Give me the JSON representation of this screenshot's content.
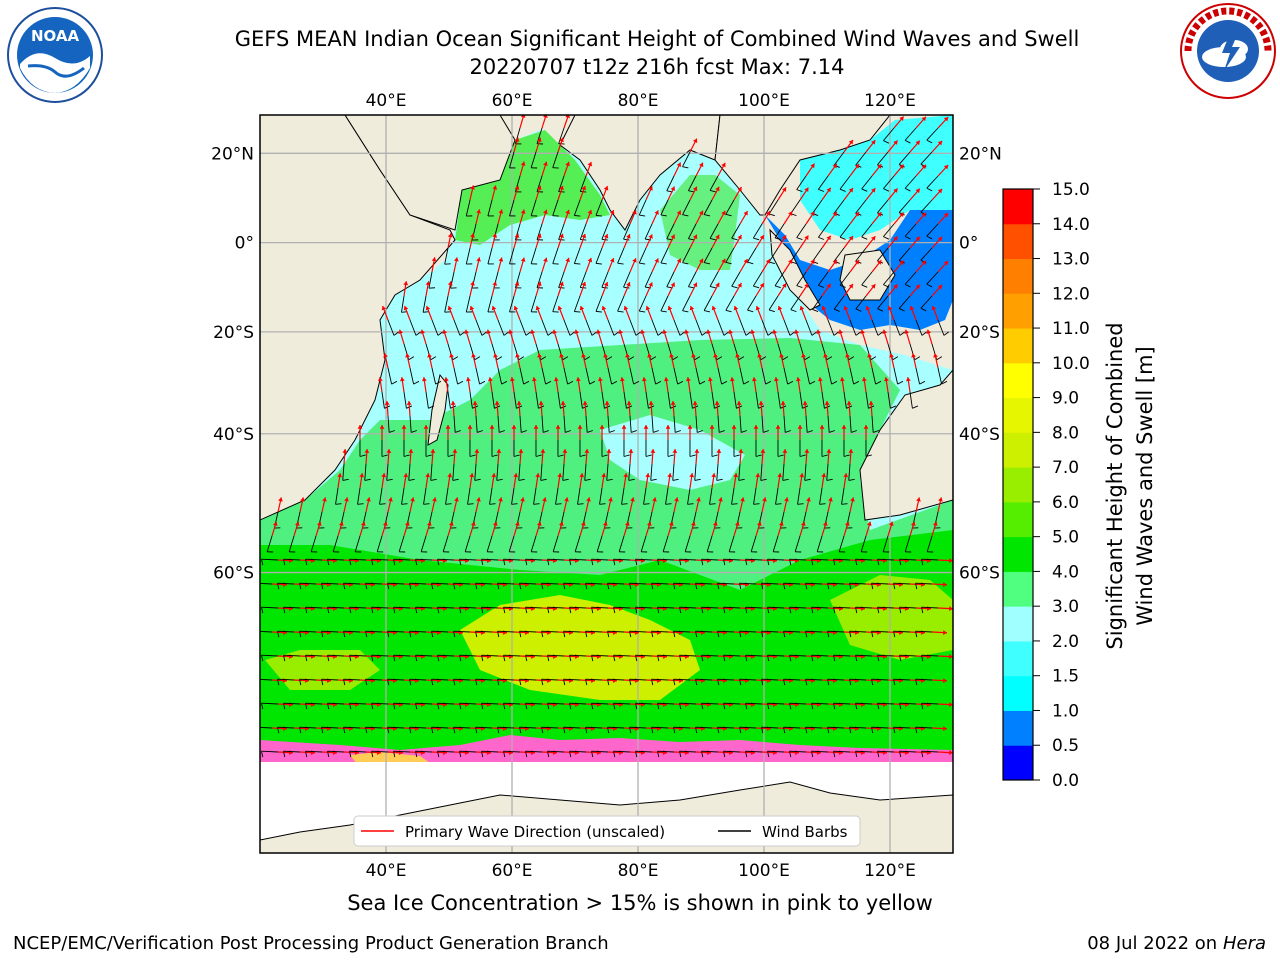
{
  "title": {
    "line1": "GEFS MEAN Indian Ocean Significant Height of Combined Wind Waves and Swell",
    "line2": "20220707 t12z 216h fcst   Max: 7.14"
  },
  "logos": {
    "left": {
      "icon": "noaa-logo-icon",
      "text": "NOAA"
    },
    "right": {
      "icon": "nws-logo-icon",
      "ring_text": "NATIONAL WEATHER SERVICE"
    }
  },
  "map": {
    "lon_ticks": [
      "40°E",
      "60°E",
      "80°E",
      "100°E",
      "120°E"
    ],
    "lon_values": [
      40,
      60,
      80,
      100,
      120
    ],
    "lat_ticks": [
      "20°N",
      "0°",
      "20°S",
      "40°S",
      "60°S"
    ],
    "lat_values": [
      20,
      0,
      -20,
      -40,
      -60
    ],
    "extent": {
      "lon": [
        20,
        130
      ],
      "lat": [
        -80,
        28
      ]
    },
    "colors": {
      "land": "#efecdc",
      "ice": "#ffffff",
      "grid": "#b0b0b0"
    }
  },
  "legend": {
    "wave_label": "Primary Wave Direction (unscaled)",
    "wave_color": "#ff0000",
    "wind_label": "Wind Barbs",
    "wind_color": "#000000"
  },
  "colorbar": {
    "label_line1": "Significant Height of Combined",
    "label_line2": "Wind Waves and Swell [m]",
    "levels": [
      "0.0",
      "0.5",
      "1.0",
      "1.5",
      "2.0",
      "3.0",
      "4.0",
      "5.0",
      "6.0",
      "7.0",
      "8.0",
      "9.0",
      "10.0",
      "11.0",
      "12.0",
      "13.0",
      "14.0",
      "15.0"
    ],
    "colors": [
      "#0000ff",
      "#0080ff",
      "#00ffff",
      "#40ffff",
      "#a0ffff",
      "#50ff80",
      "#00e600",
      "#55ee00",
      "#99ee00",
      "#ccf000",
      "#e6f500",
      "#ffff00",
      "#ffcc00",
      "#ffa000",
      "#ff8000",
      "#ff5000",
      "#ff0000"
    ]
  },
  "caption": "Sea Ice Concentration > 15% is shown in pink to yellow",
  "footer": {
    "left": "NCEP/EMC/Verification Post Processing Product Generation Branch",
    "right_prefix": "08 Jul 2022 on",
    "right_host": "Hera"
  }
}
